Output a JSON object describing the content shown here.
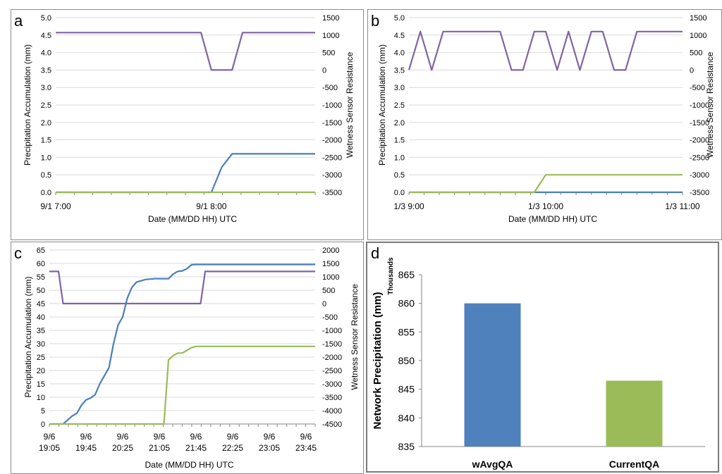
{
  "panels": [
    "a",
    "b",
    "c",
    "d"
  ],
  "chart_data": [
    {
      "panel": "a",
      "type": "line",
      "xlabel": "Date (MM/DD HH) UTC",
      "ylabel": "Precipitation Accumulation (mm)",
      "y2label": "Wetness Sensor Resistance",
      "x_ticks": [
        "9/1 7:00",
        "9/1 8:00"
      ],
      "xlim": [
        "9/1 7:00",
        "9/1 8:40"
      ],
      "ylim": [
        0,
        5
      ],
      "yticks": [
        "0.0",
        "0.5",
        "1.0",
        "1.5",
        "2.0",
        "2.5",
        "3.0",
        "3.5",
        "4.0",
        "4.5",
        "5.0"
      ],
      "y2lim": [
        -3500,
        1500
      ],
      "y2ticks": [
        "-3500",
        "-3000",
        "-2500",
        "-2000",
        "-1500",
        "-1000",
        "-500",
        "0",
        "500",
        "1000",
        "1500"
      ],
      "grid": "horizontal",
      "series": [
        {
          "color": "#4a7ebb",
          "axis": "left",
          "x": [
            "9/1 7:00",
            "9/1 8:00",
            "9/1 8:04",
            "9/1 8:08",
            "9/1 8:40"
          ],
          "y": [
            0,
            0,
            0.72,
            1.1,
            1.1
          ]
        },
        {
          "color": "#9bbb59",
          "axis": "left",
          "x": [
            "9/1 7:00",
            "9/1 8:40"
          ],
          "y": [
            0,
            0
          ]
        },
        {
          "color": "#8064a2",
          "axis": "right",
          "x": [
            "9/1 7:00",
            "9/1 7:56",
            "9/1 8:00",
            "9/1 8:08",
            "9/1 8:12",
            "9/1 8:40"
          ],
          "y": [
            1070,
            1070,
            0,
            0,
            1070,
            1070
          ]
        }
      ]
    },
    {
      "panel": "b",
      "type": "line",
      "xlabel": "Date (MM/DD HH) UTC",
      "ylabel": "Precipitation Accumulation (mm)",
      "y2label": "Wetness Sensor Resistance",
      "x_ticks": [
        "1/3 9:00",
        "1/3 10:00",
        "1/3 11:00"
      ],
      "xlim": [
        "1/3 9:00",
        "1/3 11:00"
      ],
      "ylim": [
        0,
        5
      ],
      "yticks": [
        "0.0",
        "0.5",
        "1.0",
        "1.5",
        "2.0",
        "2.5",
        "3.0",
        "3.5",
        "4.0",
        "4.5",
        "5.0"
      ],
      "y2lim": [
        -3500,
        1500
      ],
      "y2ticks": [
        "-3500",
        "-3000",
        "-2500",
        "-2000",
        "-1500",
        "-1000",
        "-500",
        "0",
        "500",
        "1000",
        "1500"
      ],
      "grid": "horizontal",
      "series": [
        {
          "color": "#4a7ebb",
          "axis": "left",
          "x": [
            "1/3 9:00",
            "1/3 11:00"
          ],
          "y": [
            0,
            0
          ]
        },
        {
          "color": "#9bbb59",
          "axis": "left",
          "x": [
            "1/3 9:00",
            "1/3 9:55",
            "1/3 10:00",
            "1/3 11:00"
          ],
          "y": [
            0,
            0,
            0.5,
            0.5
          ]
        },
        {
          "color": "#8064a2",
          "axis": "right",
          "x": [
            "1/3 9:00",
            "1/3 9:05",
            "1/3 9:10",
            "1/3 9:15",
            "1/3 9:40",
            "1/3 9:45",
            "1/3 9:50",
            "1/3 9:55",
            "1/3 10:00",
            "1/3 10:05",
            "1/3 10:10",
            "1/3 10:15",
            "1/3 10:20",
            "1/3 10:25",
            "1/3 10:30",
            "1/3 10:35",
            "1/3 10:40",
            "1/3 11:00"
          ],
          "y": [
            0,
            1100,
            0,
            1100,
            1100,
            0,
            0,
            1100,
            1100,
            0,
            1100,
            0,
            1100,
            1100,
            0,
            0,
            1100,
            1100
          ]
        }
      ]
    },
    {
      "panel": "c",
      "type": "line",
      "xlabel": "Date (MM/DD HH) UTC",
      "ylabel": "Precipitation Accumulation (mm)",
      "y2label": "Wetness Sensor Resistance",
      "x_ticks": [
        [
          "9/6",
          "19:05"
        ],
        [
          "9/6",
          "19:45"
        ],
        [
          "9/6",
          "20:25"
        ],
        [
          "9/6",
          "21:05"
        ],
        [
          "9/6",
          "21:45"
        ],
        [
          "9/6",
          "22:25"
        ],
        [
          "9/6",
          "23:05"
        ],
        [
          "9/6",
          "23:45"
        ]
      ],
      "xlim": [
        "9/6 19:05",
        "9/6 23:55"
      ],
      "ylim": [
        0,
        65
      ],
      "yticks": [
        "0",
        "5",
        "10",
        "15",
        "20",
        "25",
        "30",
        "35",
        "40",
        "45",
        "50",
        "55",
        "60",
        "65"
      ],
      "y2lim": [
        -4500,
        2000
      ],
      "y2ticks": [
        "-4500",
        "-4000",
        "-3500",
        "-3000",
        "-2500",
        "-2000",
        "-1500",
        "-1000",
        "-500",
        "0",
        "500",
        "1000",
        "1500",
        "2000"
      ],
      "grid": "horizontal",
      "series": [
        {
          "color": "#4a7ebb",
          "axis": "left",
          "x": [
            "19:05",
            "19:20",
            "19:30",
            "19:35",
            "19:40",
            "19:45",
            "19:50",
            "19:55",
            "20:00",
            "20:05",
            "20:10",
            "20:15",
            "20:20",
            "20:25",
            "20:30",
            "20:35",
            "20:40",
            "20:50",
            "21:00",
            "21:10",
            "21:15",
            "21:20",
            "21:25",
            "21:30",
            "21:35",
            "21:40",
            "21:45",
            "21:55",
            "23:55"
          ],
          "y": [
            0,
            0,
            3,
            4,
            7,
            9,
            9.7,
            11,
            15,
            18,
            21,
            30,
            37,
            40,
            47,
            51,
            53,
            54,
            54.3,
            54.3,
            54.3,
            56,
            57,
            57.2,
            58,
            59.5,
            59.6,
            59.6,
            59.6
          ]
        },
        {
          "color": "#9bbb59",
          "axis": "left",
          "x": [
            "19:05",
            "21:10",
            "21:15",
            "21:20",
            "21:25",
            "21:30",
            "21:35",
            "21:40",
            "21:45",
            "23:55"
          ],
          "y": [
            0,
            0,
            24,
            25.5,
            26.5,
            26.5,
            27.5,
            28.5,
            29,
            29
          ]
        },
        {
          "color": "#8064a2",
          "axis": "right",
          "x": [
            "19:05",
            "19:15",
            "19:20",
            "21:50",
            "21:55",
            "23:55"
          ],
          "y": [
            1200,
            1200,
            0,
            0,
            1200,
            1200
          ]
        }
      ]
    },
    {
      "panel": "d",
      "type": "bar",
      "ylabel": "Network  Precipitation (mm)",
      "y_unit": "Thousands",
      "categories": [
        "wAvgQA",
        "CurrentQA"
      ],
      "values": [
        860,
        846.5
      ],
      "colors": [
        "#4f81bd",
        "#9bbb59"
      ],
      "ylim": [
        835,
        865
      ],
      "yticks": [
        "835",
        "840",
        "845",
        "850",
        "855",
        "860",
        "865"
      ],
      "grid": "none"
    }
  ]
}
